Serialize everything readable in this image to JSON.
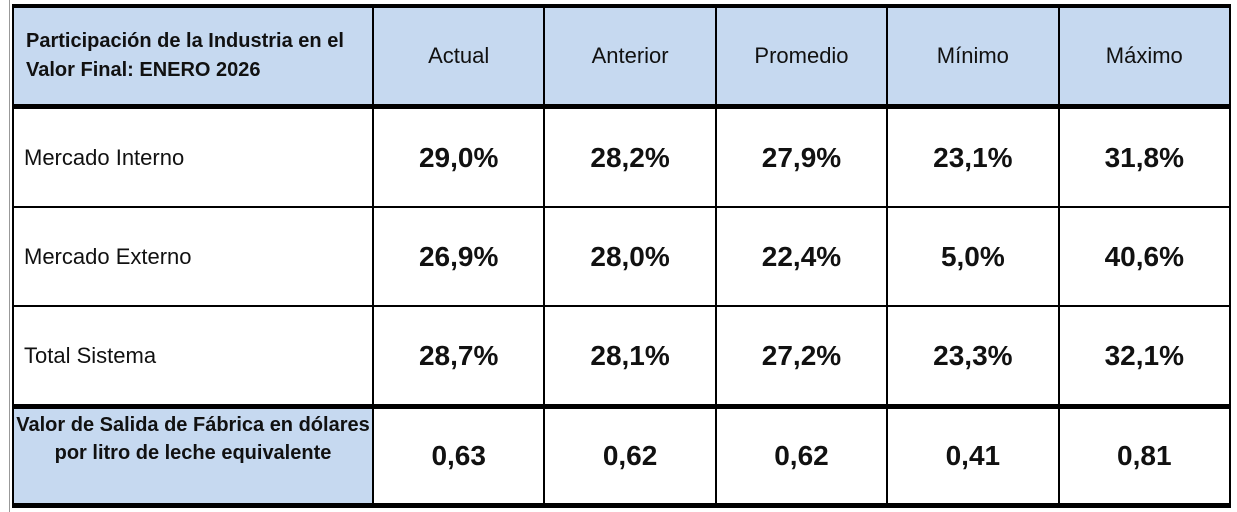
{
  "header": {
    "title": "Participación de la Industria en el Valor Final: ENERO 2026",
    "columns": [
      "Actual",
      "Anterior",
      "Promedio",
      "Mínimo",
      "Máximo"
    ]
  },
  "table": {
    "rows": [
      {
        "label": "Mercado Interno",
        "values": [
          "29,0%",
          "28,2%",
          "27,9%",
          "23,1%",
          "31,8%"
        ]
      },
      {
        "label": "Mercado Externo",
        "values": [
          "26,9%",
          "28,0%",
          "22,4%",
          "5,0%",
          "40,6%"
        ]
      },
      {
        "label": "Total Sistema",
        "values": [
          "28,7%",
          "28,1%",
          "27,2%",
          "23,3%",
          "32,1%"
        ]
      },
      {
        "label": "Valor de Salida de Fábrica en dólares por litro de leche equivalente",
        "values": [
          "0,63",
          "0,62",
          "0,62",
          "0,41",
          "0,81"
        ]
      }
    ]
  }
}
